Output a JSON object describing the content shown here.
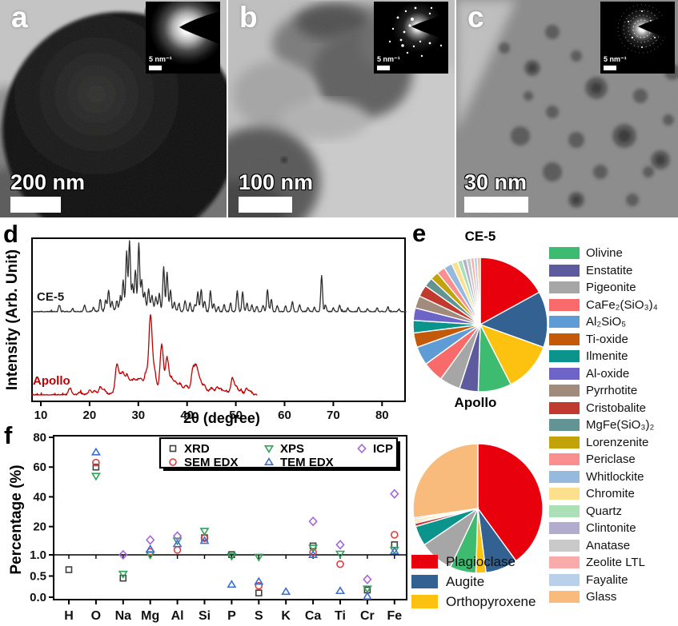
{
  "panels": {
    "a": {
      "label": "a",
      "scale_bar": "200 nm",
      "inset_scale": "5 nm⁻¹"
    },
    "b": {
      "label": "b",
      "scale_bar": "100 nm",
      "inset_scale": "5 nm⁻¹"
    },
    "c": {
      "label": "c",
      "scale_bar": "30 nm",
      "inset_scale": "5 nm⁻¹"
    },
    "d": {
      "label": "d"
    },
    "e": {
      "label": "e"
    },
    "f": {
      "label": "f"
    }
  },
  "panel_e": {
    "title_ce5": "CE-5",
    "title_apollo": "Apollo",
    "side_legend": [
      "Olivine",
      "Enstatite",
      "Pigeonite",
      "CaFe₂(SiO₃)₄",
      "Al₂SiO₅",
      "Ti-oxide",
      "Ilmenite",
      "Al-oxide",
      "Pyrrhotite",
      "Cristobalite",
      "MgFe(SiO₃)₂",
      "Lorenzenite",
      "Periclase",
      "Whitlockite",
      "Chromite",
      "Quartz",
      "Clintonite",
      "Anatase",
      "Zeolite LTL",
      "Fayalite",
      "Glass"
    ],
    "bottom_legend": [
      "Plagioclase",
      "Augite",
      "Orthopyroxene"
    ]
  },
  "mineral_colors": {
    "Plagioclase": "#e8000d",
    "Augite": "#336191",
    "Orthopyroxene": "#fdc20f",
    "Olivine": "#3dbb70",
    "Enstatite": "#5d5a9e",
    "Pigeonite": "#a6a6a6",
    "CaFe₂(SiO₃)₄": "#f96b6b",
    "Al₂SiO₅": "#5f9bd5",
    "Ti-oxide": "#c35a09",
    "Ilmenite": "#0a948b",
    "Al-oxide": "#6e64c8",
    "Pyrrhotite": "#a18b7d",
    "Cristobalite": "#c03a30",
    "MgFe(SiO₃)₂": "#629494",
    "Lorenzenite": "#c2a30a",
    "Periclase": "#f98f8f",
    "Whitlockite": "#96b9de",
    "Chromite": "#fce08e",
    "Quartz": "#abdfb5",
    "Clintonite": "#b2adce",
    "Anatase": "#c9c9c9",
    "Zeolite LTL": "#f9abab",
    "Fayalite": "#b8d0ea",
    "Glass": "#f9bb7c"
  },
  "chart_data": [
    {
      "id": "xrd-patterns",
      "type": "line",
      "title": "",
      "xlabel": "2θ (degree)",
      "ylabel": "Intensity (Arb. Unit)",
      "xlim": [
        8,
        85
      ],
      "xticks": [
        10,
        20,
        30,
        40,
        50,
        60,
        70,
        80
      ],
      "grid": false,
      "series": [
        {
          "name": "CE-5",
          "color": "#2e2e2e",
          "xrange": [
            8,
            85
          ],
          "peak_width": 0.18,
          "peaks": [
            [
              13.8,
              0.1
            ],
            [
              16.5,
              0.05
            ],
            [
              19.0,
              0.1
            ],
            [
              20.8,
              0.06
            ],
            [
              22.2,
              0.18
            ],
            [
              23.3,
              0.16
            ],
            [
              23.9,
              0.3
            ],
            [
              24.6,
              0.14
            ],
            [
              25.6,
              0.14
            ],
            [
              26.3,
              0.18
            ],
            [
              26.9,
              0.42
            ],
            [
              27.6,
              0.85
            ],
            [
              28.2,
              1.0
            ],
            [
              28.8,
              0.35
            ],
            [
              29.4,
              0.55
            ],
            [
              30.1,
              0.95
            ],
            [
              30.7,
              0.4
            ],
            [
              31.3,
              0.22
            ],
            [
              31.0,
              0.06,
              4.0
            ],
            [
              32.1,
              0.28
            ],
            [
              32.8,
              0.18
            ],
            [
              33.6,
              0.16
            ],
            [
              34.3,
              0.22
            ],
            [
              35.2,
              0.62
            ],
            [
              35.9,
              0.55
            ],
            [
              36.6,
              0.3
            ],
            [
              37.4,
              0.12
            ],
            [
              38.3,
              0.1
            ],
            [
              39.6,
              0.16
            ],
            [
              40.6,
              0.12
            ],
            [
              41.6,
              0.1
            ],
            [
              42.2,
              0.28
            ],
            [
              42.9,
              0.32
            ],
            [
              43.6,
              0.16
            ],
            [
              44.8,
              0.3
            ],
            [
              45.5,
              0.12
            ],
            [
              46.4,
              0.08
            ],
            [
              47.6,
              0.1
            ],
            [
              48.9,
              0.12
            ],
            [
              50.3,
              0.3
            ],
            [
              51.4,
              0.28
            ],
            [
              52.3,
              0.12
            ],
            [
              53.3,
              0.1
            ],
            [
              54.3,
              0.08
            ],
            [
              55.6,
              0.1
            ],
            [
              56.5,
              0.32
            ],
            [
              57.3,
              0.18
            ],
            [
              58.5,
              0.08
            ],
            [
              60.2,
              0.08
            ],
            [
              61.6,
              0.14
            ],
            [
              63.1,
              0.1
            ],
            [
              64.8,
              0.06
            ],
            [
              66.1,
              0.06
            ],
            [
              67.6,
              0.52
            ],
            [
              68.4,
              0.1
            ],
            [
              70.0,
              0.06
            ],
            [
              71.3,
              0.1
            ],
            [
              73.0,
              0.05
            ],
            [
              75.2,
              0.06
            ],
            [
              77.0,
              0.04
            ],
            [
              79.0,
              0.05
            ],
            [
              81.2,
              0.08
            ],
            [
              83.5,
              0.04
            ]
          ]
        },
        {
          "name": "Apollo",
          "color": "#c00000",
          "xrange": [
            8,
            54.5
          ],
          "peak_width": 0.33,
          "peaks": [
            [
              16.0,
              0.09
            ],
            [
              18.0,
              0.04
            ],
            [
              20.0,
              0.06
            ],
            [
              21.0,
              0.05
            ],
            [
              22.2,
              0.1
            ],
            [
              23.0,
              0.06
            ],
            [
              25.6,
              0.38
            ],
            [
              26.3,
              0.18
            ],
            [
              26.9,
              0.22
            ],
            [
              27.7,
              0.22
            ],
            [
              28.5,
              0.12
            ],
            [
              29.2,
              0.14
            ],
            [
              30.0,
              0.14
            ],
            [
              30.7,
              0.12
            ],
            [
              31.6,
              0.22
            ],
            [
              32.5,
              1.0
            ],
            [
              33.3,
              0.25
            ],
            [
              33.0,
              0.08,
              5.0
            ],
            [
              34.8,
              0.6
            ],
            [
              35.9,
              0.42
            ],
            [
              36.8,
              0.15
            ],
            [
              37.6,
              0.1
            ],
            [
              38.5,
              0.08
            ],
            [
              39.8,
              0.06
            ],
            [
              41.2,
              0.28
            ],
            [
              41.9,
              0.3
            ],
            [
              42.6,
              0.15
            ],
            [
              42.0,
              0.05,
              4.0
            ],
            [
              43.5,
              0.08
            ],
            [
              45.0,
              0.05
            ],
            [
              46.2,
              0.07
            ],
            [
              47.0,
              0.05
            ],
            [
              48.0,
              0.04
            ],
            [
              49.3,
              0.22
            ],
            [
              50.1,
              0.1
            ],
            [
              51.0,
              0.06
            ],
            [
              52.2,
              0.08
            ],
            [
              53.0,
              0.05
            ]
          ]
        }
      ]
    },
    {
      "id": "pie-ce5",
      "type": "pie",
      "title": "CE-5",
      "slices": [
        {
          "name": "Plagioclase",
          "value": 17
        },
        {
          "name": "Augite",
          "value": 13.5
        },
        {
          "name": "Orthopyroxene",
          "value": 12
        },
        {
          "name": "Olivine",
          "value": 8
        },
        {
          "name": "Enstatite",
          "value": 4.5
        },
        {
          "name": "Pigeonite",
          "value": 5
        },
        {
          "name": "CaFe₂(SiO₃)₄",
          "value": 5
        },
        {
          "name": "Al₂SiO₅",
          "value": 4.5
        },
        {
          "name": "Ti-oxide",
          "value": 3.5
        },
        {
          "name": "Ilmenite",
          "value": 3
        },
        {
          "name": "Al-oxide",
          "value": 3
        },
        {
          "name": "Pyrrhotite",
          "value": 3
        },
        {
          "name": "Cristobalite",
          "value": 2.8
        },
        {
          "name": "MgFe(SiO₃)₂",
          "value": 2.2
        },
        {
          "name": "Lorenzenite",
          "value": 2
        },
        {
          "name": "Periclase",
          "value": 2
        },
        {
          "name": "Whitlockite",
          "value": 2
        },
        {
          "name": "Chromite",
          "value": 1.5
        },
        {
          "name": "Quartz",
          "value": 1.2
        },
        {
          "name": "Clintonite",
          "value": 1
        },
        {
          "name": "Anatase",
          "value": 1
        },
        {
          "name": "Zeolite LTL",
          "value": 0.8
        },
        {
          "name": "Fayalite",
          "value": 0.8
        },
        {
          "name": "Glass",
          "value": 0.7
        }
      ]
    },
    {
      "id": "pie-apollo",
      "type": "pie",
      "title": "Apollo",
      "slices": [
        {
          "name": "Plagioclase",
          "value": 40
        },
        {
          "name": "Augite",
          "value": 8
        },
        {
          "name": "Orthopyroxene",
          "value": 2.5
        },
        {
          "name": "Olivine",
          "value": 6.5
        },
        {
          "name": "Pigeonite",
          "value": 8.5
        },
        {
          "name": "Ilmenite",
          "value": 5
        },
        {
          "name": "Cristobalite",
          "value": 0.8
        },
        {
          "name": "Periclase",
          "value": 0.4
        },
        {
          "name": "Chromite",
          "value": 0.6
        },
        {
          "name": "Whitlockite",
          "value": 0.4
        },
        {
          "name": "Glass",
          "value": 27.3
        }
      ]
    },
    {
      "id": "element-percentages",
      "type": "scatter",
      "ylabel": "Percentage (%)",
      "categories": [
        "H",
        "O",
        "Na",
        "Mg",
        "Al",
        "Si",
        "P",
        "S",
        "K",
        "Ca",
        "Ti",
        "Cr",
        "Fe"
      ],
      "ylim": [
        0,
        80
      ],
      "axis_break": 1.0,
      "yticks_upper": [
        20,
        40,
        60,
        80
      ],
      "yticks_lower": [
        0,
        0.5,
        1
      ],
      "legend_position": "top",
      "series": [
        {
          "name": "XRD",
          "marker": "square",
          "color": "#3f3f3f",
          "points": {
            "H": 0.65,
            "O": 60,
            "Na": 0.45,
            "Si": 12.5,
            "P": 1.15,
            "S": 0.1,
            "Ca": 7,
            "Cr": 0.17,
            "Fe": 7.8
          }
        },
        {
          "name": "SEM EDX",
          "marker": "circle",
          "color": "#e23c3c",
          "points": {
            "O": 63,
            "Mg": 3.0,
            "Al": 4.3,
            "Si": 12.2,
            "S": 0.27,
            "Ca": 2.7,
            "Ti": 0.78,
            "Fe": 14.5
          }
        },
        {
          "name": "XPS",
          "marker": "triangle-down",
          "color": "#2fa357",
          "points": {
            "O": 54,
            "Na": 0.55,
            "Mg": 1.0,
            "Al": 10.5,
            "Si": 17,
            "P": 0.97,
            "S": 0.95,
            "Ca": 5.7,
            "Ti": 1.7,
            "Cr": 0.2,
            "Fe": 4.3
          }
        },
        {
          "name": "TEM EDX",
          "marker": "triangle-up",
          "color": "#3f6ed0",
          "points": {
            "O": 70,
            "Mg": 4.8,
            "Al": 8.3,
            "Si": 10.5,
            "P": 0.3,
            "S": 0.37,
            "K": 0.13,
            "Ca": 1.0,
            "Ti": 0.15,
            "Cr": 0.02,
            "Fe": 3.4
          }
        },
        {
          "name": "ICP",
          "marker": "diamond",
          "color": "#a765d8",
          "points": {
            "Na": 1.05,
            "Mg": 11,
            "Al": 13.6,
            "Ca": 23.5,
            "Ti": 7.8,
            "Cr": 0.42,
            "Fe": 42
          }
        }
      ]
    }
  ]
}
